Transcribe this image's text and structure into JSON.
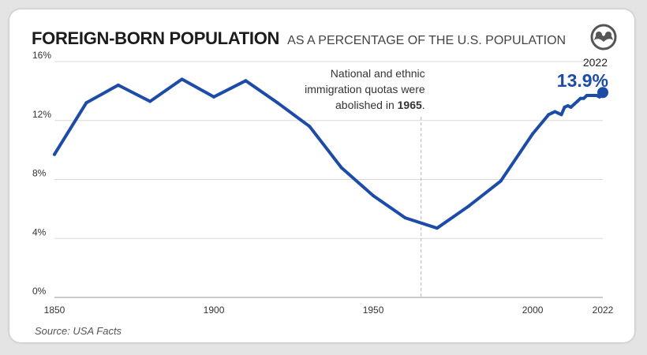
{
  "header": {
    "title": "FOREIGN-BORN POPULATION",
    "subtitle": "AS A PERCENTAGE OF THE U.S. POPULATION"
  },
  "source": "Source: USA Facts",
  "colors": {
    "line": "#1d4ba8",
    "grid": "#d9d9d9",
    "annotation_line": "#b5b5b5"
  },
  "icons": {
    "logo": "visual-capitalist-logo-icon"
  },
  "chart_data": {
    "type": "line",
    "title": "FOREIGN-BORN POPULATION",
    "subtitle": "AS A PERCENTAGE OF THE U.S. POPULATION",
    "xlabel": "",
    "ylabel": "",
    "xlim": [
      1850,
      2022
    ],
    "ylim": [
      0,
      16
    ],
    "x_ticks": [
      {
        "value": 1850,
        "label": "1850"
      },
      {
        "value": 1900,
        "label": "1900"
      },
      {
        "value": 1950,
        "label": "1950"
      },
      {
        "value": 2000,
        "label": "2000"
      },
      {
        "value": 2022,
        "label": "2022"
      }
    ],
    "y_ticks": [
      {
        "value": 0,
        "label": "0%"
      },
      {
        "value": 4,
        "label": "4%"
      },
      {
        "value": 8,
        "label": "8%"
      },
      {
        "value": 12,
        "label": "12%"
      },
      {
        "value": 16,
        "label": "16%"
      }
    ],
    "grid": true,
    "series": [
      {
        "name": "",
        "x": [
          1850,
          1860,
          1870,
          1880,
          1890,
          1900,
          1910,
          1920,
          1930,
          1940,
          1950,
          1960,
          1970,
          1980,
          1990,
          2000,
          2005,
          2006,
          2007,
          2008,
          2009,
          2010,
          2011,
          2012,
          2013,
          2014,
          2015,
          2016,
          2017,
          2018,
          2019,
          2020,
          2021,
          2022
        ],
        "y": [
          9.7,
          13.2,
          14.4,
          13.3,
          14.8,
          13.6,
          14.7,
          13.2,
          11.6,
          8.8,
          6.9,
          5.4,
          4.7,
          6.2,
          7.9,
          11.1,
          12.4,
          12.5,
          12.6,
          12.5,
          12.4,
          12.9,
          13.0,
          12.9,
          13.1,
          13.3,
          13.5,
          13.5,
          13.7,
          13.7,
          13.7,
          13.7,
          13.6,
          13.9
        ]
      }
    ],
    "annotations": [
      {
        "x": 1965,
        "lines": [
          "National and ethnic",
          "immigration quotas were"
        ],
        "last_line_prefix": "abolished in ",
        "last_line_bold": "1965",
        "last_line_suffix": "."
      }
    ],
    "endpoint": {
      "x": 2022,
      "year_label": "2022",
      "value_label": "13.9%"
    }
  }
}
